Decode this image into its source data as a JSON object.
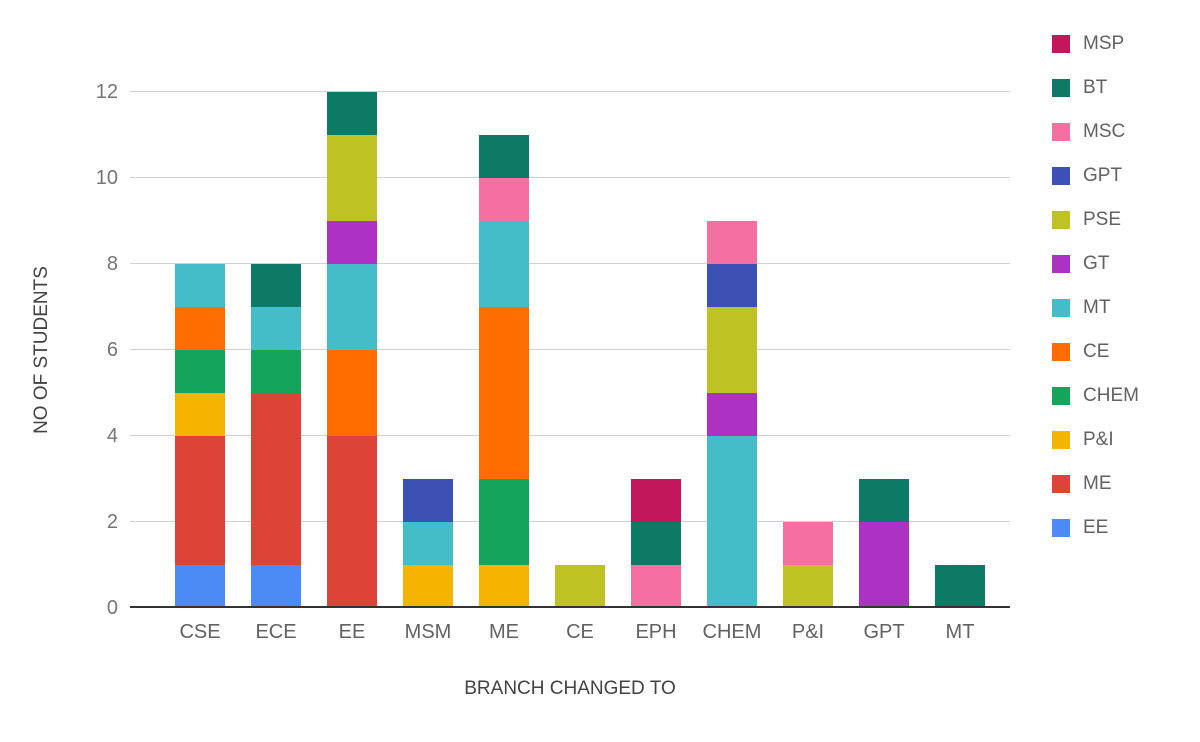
{
  "chart_data": {
    "type": "bar",
    "stacked": true,
    "title": "",
    "xlabel": "BRANCH CHANGED TO",
    "ylabel": "NO OF STUDENTS",
    "ylim": [
      0,
      12
    ],
    "yticks": [
      0,
      2,
      4,
      6,
      8,
      10,
      12
    ],
    "grid": true,
    "legend_position": "right",
    "legend_order": [
      "MSP",
      "BT",
      "MSC",
      "GPT",
      "PSE",
      "GT",
      "MT",
      "CE",
      "CHEM",
      "P&I",
      "ME",
      "EE"
    ],
    "categories": [
      "CSE",
      "ECE",
      "EE",
      "MSM",
      "ME",
      "CE",
      "EPH",
      "CHEM",
      "P&I",
      "GPT",
      "MT"
    ],
    "series": [
      {
        "name": "EE",
        "color": "#4c8bf5",
        "values": [
          1,
          1,
          0,
          0,
          0,
          0,
          0,
          0,
          0,
          0,
          0
        ]
      },
      {
        "name": "ME",
        "color": "#db4437",
        "values": [
          3,
          4,
          4,
          0,
          0,
          0,
          0,
          0,
          0,
          0,
          0
        ]
      },
      {
        "name": "P&I",
        "color": "#f4b400",
        "values": [
          1,
          0,
          0,
          1,
          1,
          0,
          0,
          0,
          0,
          0,
          0
        ]
      },
      {
        "name": "CHEM",
        "color": "#14a45c",
        "values": [
          1,
          1,
          0,
          0,
          2,
          0,
          0,
          0,
          0,
          0,
          0
        ]
      },
      {
        "name": "CE",
        "color": "#ff6d00",
        "values": [
          1,
          0,
          2,
          0,
          4,
          0,
          0,
          0,
          0,
          0,
          0
        ]
      },
      {
        "name": "MT",
        "color": "#45bdc9",
        "values": [
          1,
          1,
          2,
          1,
          2,
          0,
          0,
          4,
          0,
          0,
          0
        ]
      },
      {
        "name": "GT",
        "color": "#ad32c4",
        "values": [
          0,
          0,
          1,
          0,
          0,
          0,
          0,
          1,
          0,
          2,
          0
        ]
      },
      {
        "name": "PSE",
        "color": "#bfc223",
        "values": [
          0,
          0,
          2,
          0,
          0,
          1,
          0,
          2,
          1,
          0,
          0
        ]
      },
      {
        "name": "GPT",
        "color": "#3d50b4",
        "values": [
          0,
          0,
          0,
          1,
          0,
          0,
          0,
          1,
          0,
          0,
          0
        ]
      },
      {
        "name": "MSC",
        "color": "#f56fa1",
        "values": [
          0,
          0,
          0,
          0,
          1,
          0,
          1,
          1,
          1,
          0,
          0
        ]
      },
      {
        "name": "BT",
        "color": "#0d7a66",
        "values": [
          0,
          1,
          1,
          0,
          1,
          0,
          1,
          0,
          0,
          1,
          1
        ]
      },
      {
        "name": "MSP",
        "color": "#c2185b",
        "values": [
          0,
          0,
          0,
          0,
          0,
          0,
          1,
          0,
          0,
          0,
          0
        ]
      }
    ]
  }
}
